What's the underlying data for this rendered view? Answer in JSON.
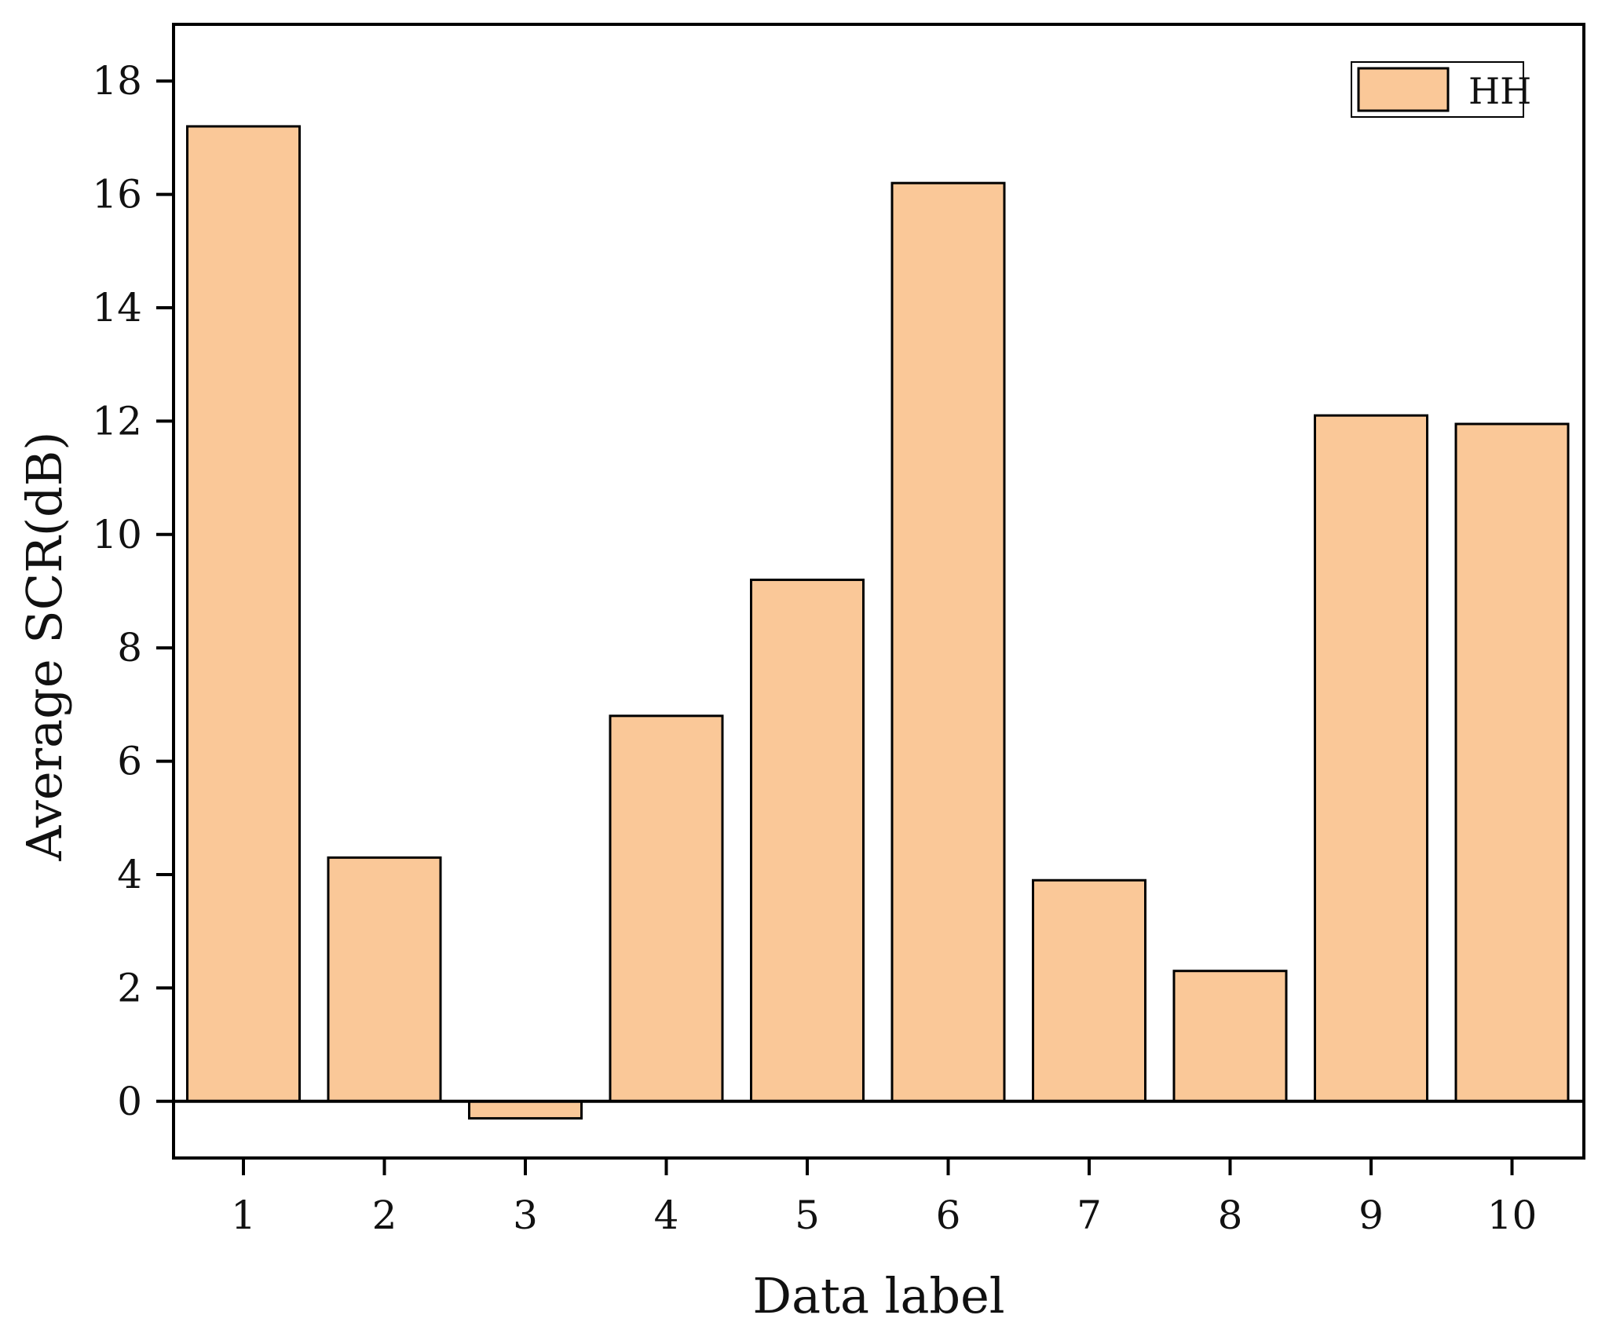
{
  "chart_data": {
    "type": "bar",
    "categories": [
      "1",
      "2",
      "3",
      "4",
      "5",
      "6",
      "7",
      "8",
      "9",
      "10"
    ],
    "series": [
      {
        "name": "HH",
        "values": [
          17.2,
          4.3,
          -0.3,
          6.8,
          9.2,
          16.2,
          3.9,
          2.3,
          12.1,
          11.95
        ],
        "color": "#FAC898"
      }
    ],
    "xlabel": "Data label",
    "ylabel": "Average SCR(dB)",
    "ylim": [
      -1,
      19
    ],
    "yticks": [
      0,
      2,
      4,
      6,
      8,
      10,
      12,
      14,
      16,
      18
    ],
    "grid": false,
    "legend_position": "top-right",
    "zero_line": true
  }
}
